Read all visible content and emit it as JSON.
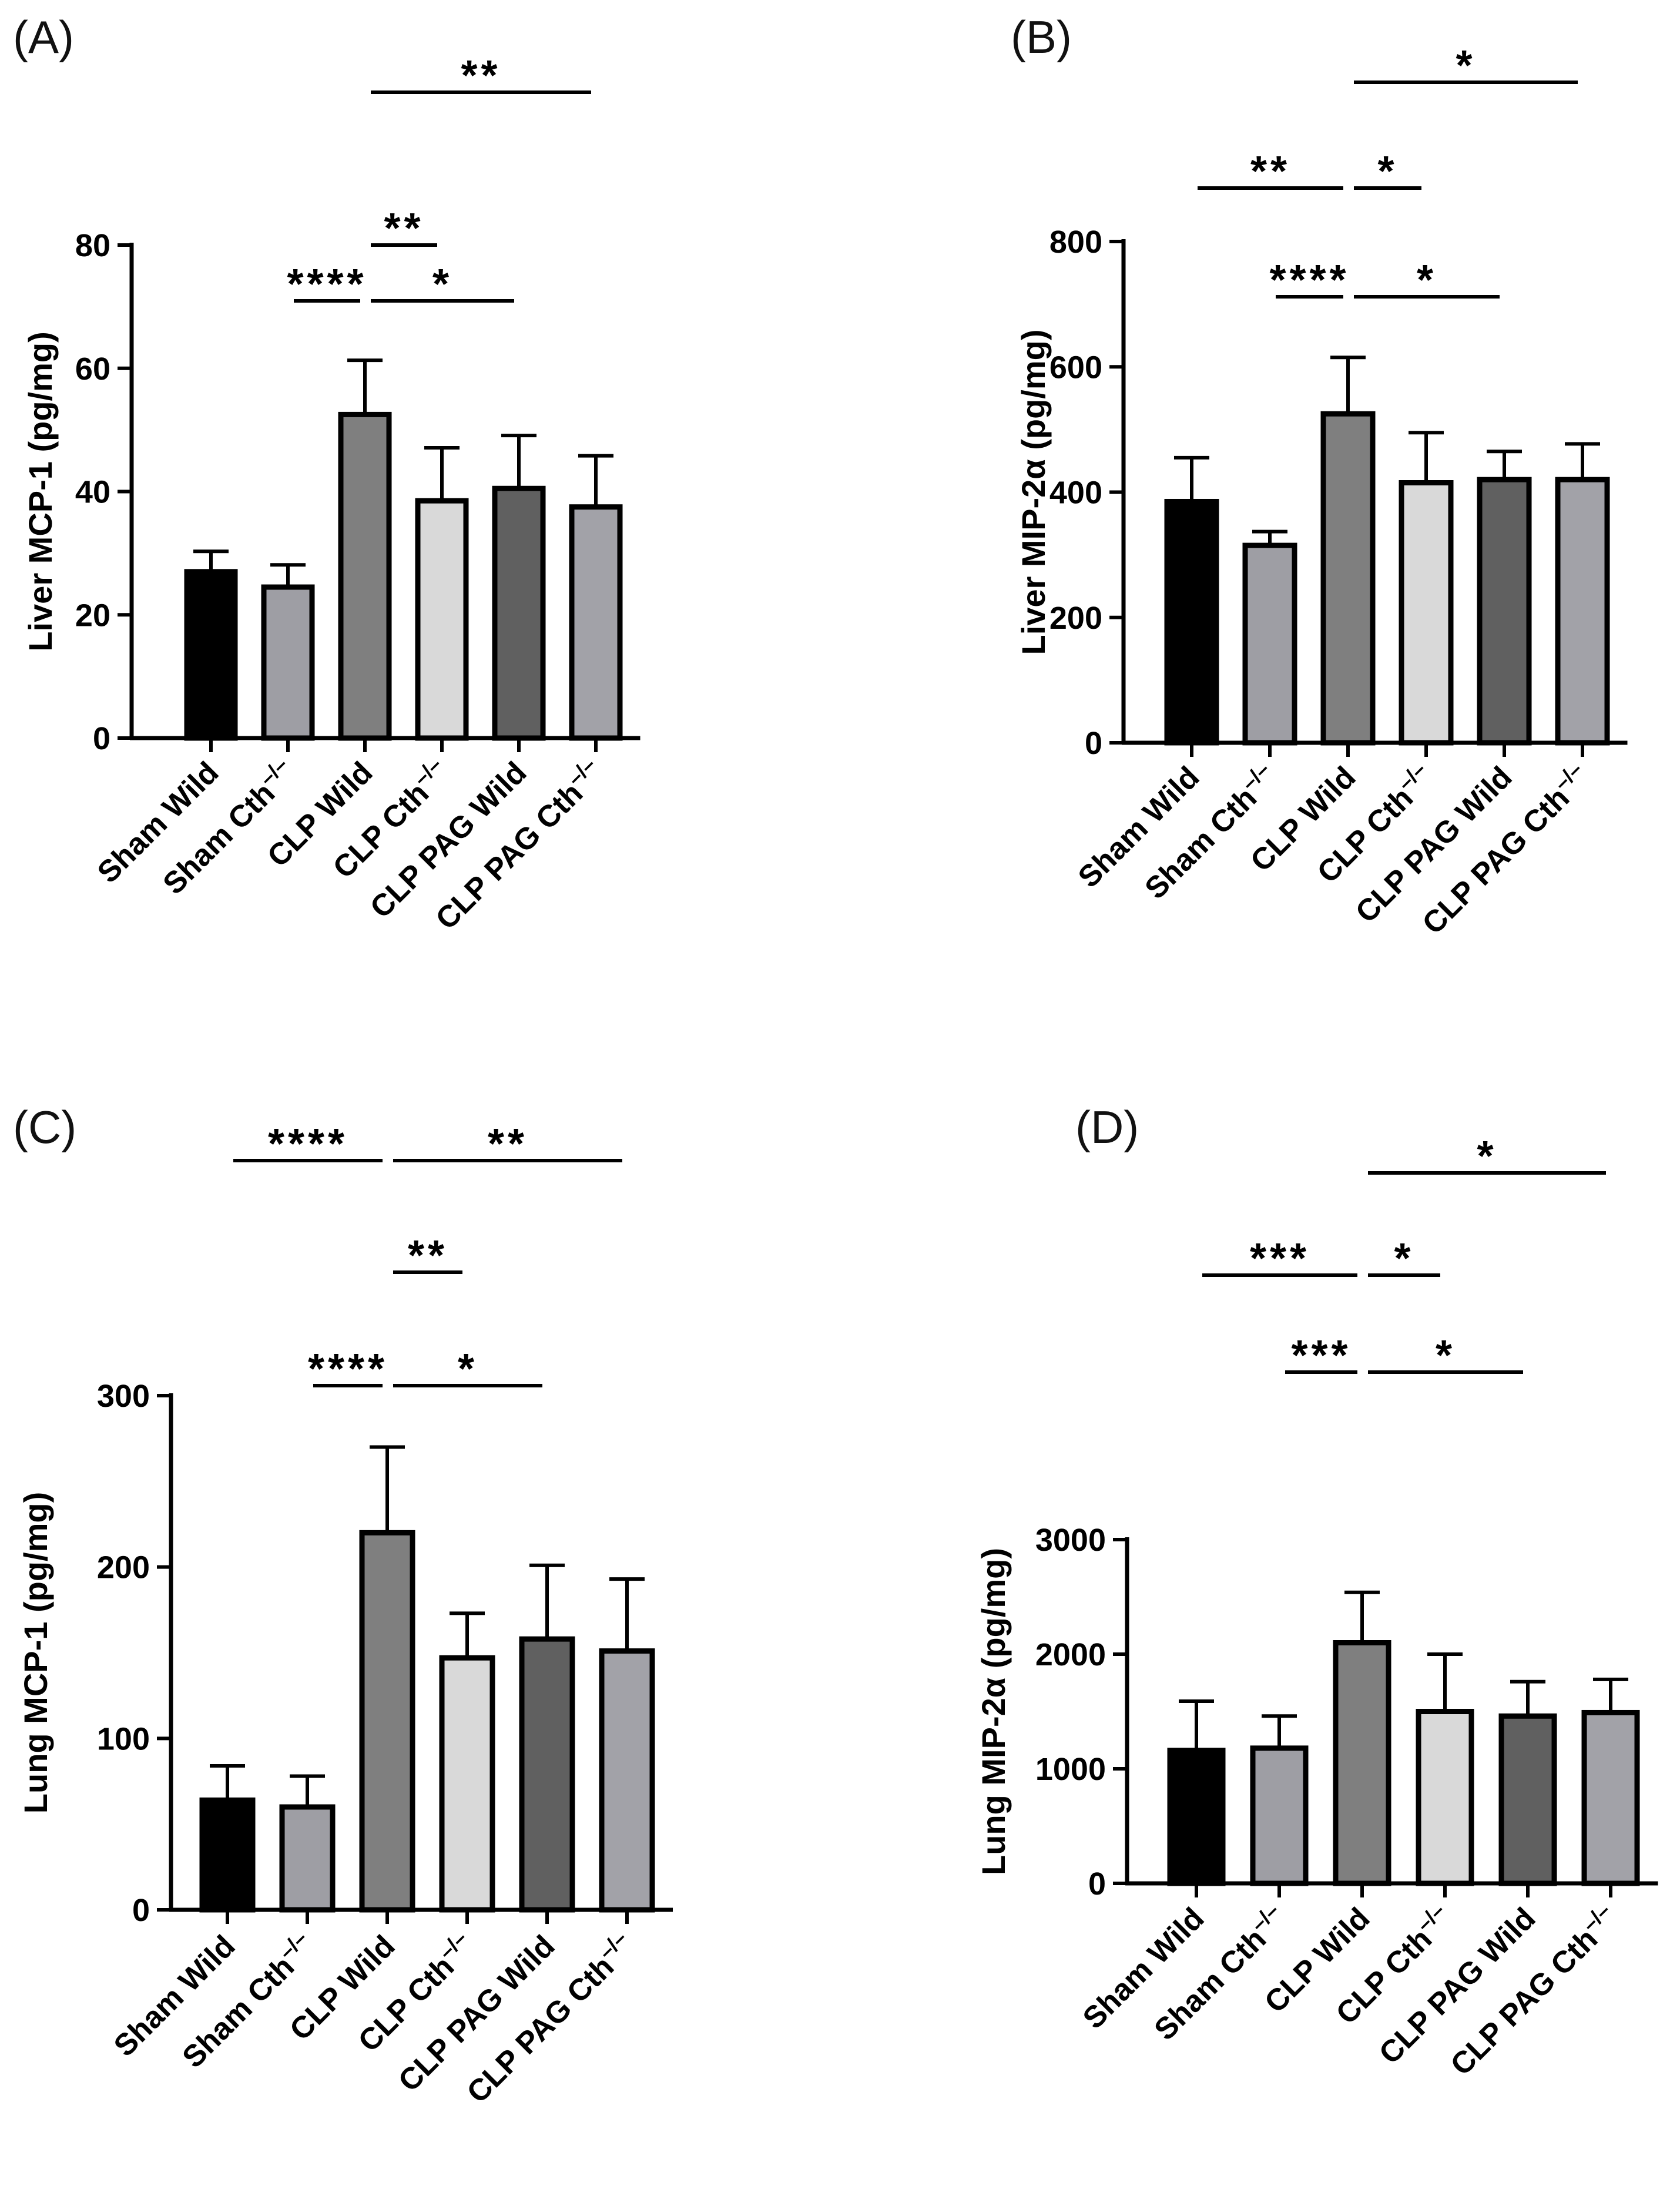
{
  "chart_data": [
    {
      "panel": "(A)",
      "type": "bar",
      "ylabel": "Liver MCP-1 (pg/mg)",
      "ylim": [
        0,
        80
      ],
      "yticks": [
        "0",
        "20",
        "40",
        "60",
        "80"
      ],
      "categories": [
        {
          "base": "Sham Wild",
          "sup": ""
        },
        {
          "base": "Sham Cth",
          "sup": "–/–"
        },
        {
          "base": "CLP Wild",
          "sup": ""
        },
        {
          "base": "CLP Cth",
          "sup": "–/–"
        },
        {
          "base": "CLP PAG Wild",
          "sup": ""
        },
        {
          "base": "CLP PAG Cth",
          "sup": "–/–"
        }
      ],
      "values": [
        27,
        24.5,
        52.5,
        38.5,
        40.5,
        37.5
      ],
      "errors": [
        3.3,
        3.6,
        8.8,
        8.6,
        8.6,
        8.3
      ],
      "colors": [
        "#000000",
        "#9e9ea4",
        "#7f7f7f",
        "#d9d9d9",
        "#606060",
        "#a2a2a8"
      ],
      "significance": [
        {
          "from": 1,
          "to": 2,
          "label": "****"
        },
        {
          "from": 2,
          "to": 4,
          "label": "*"
        },
        {
          "from": 2,
          "to": 3,
          "label": "**"
        },
        {
          "from": 2,
          "to": 5,
          "label": "**"
        }
      ]
    },
    {
      "panel": "(B)",
      "type": "bar",
      "ylabel": "Liver MIP-2α (pg/mg)",
      "ylim": [
        0,
        800
      ],
      "yticks": [
        "0",
        "200",
        "400",
        "600",
        "800"
      ],
      "categories": [
        {
          "base": "Sham Wild",
          "sup": ""
        },
        {
          "base": "Sham Cth",
          "sup": "–/–"
        },
        {
          "base": "CLP Wild",
          "sup": ""
        },
        {
          "base": "CLP Cth",
          "sup": "–/–"
        },
        {
          "base": "CLP PAG Wild",
          "sup": ""
        },
        {
          "base": "CLP PAG Cth",
          "sup": "–/–"
        }
      ],
      "values": [
        385,
        315,
        525,
        415,
        420,
        420
      ],
      "errors": [
        70,
        22,
        90,
        80,
        45,
        57
      ],
      "colors": [
        "#000000",
        "#9e9ea4",
        "#7f7f7f",
        "#d9d9d9",
        "#606060",
        "#a2a2a8"
      ],
      "significance": [
        {
          "from": 1,
          "to": 2,
          "label": "****"
        },
        {
          "from": 2,
          "to": 4,
          "label": "*"
        },
        {
          "from": 0,
          "to": 2,
          "label": "**"
        },
        {
          "from": 2,
          "to": 3,
          "label": "*"
        },
        {
          "from": 2,
          "to": 5,
          "label": "*"
        }
      ]
    },
    {
      "panel": "(C)",
      "type": "bar",
      "ylabel": "Lung MCP-1 (pg/mg)",
      "ylim": [
        0,
        300
      ],
      "yticks": [
        "0",
        "100",
        "200",
        "300"
      ],
      "categories": [
        {
          "base": "Sham Wild",
          "sup": ""
        },
        {
          "base": "Sham Cth",
          "sup": "–/–"
        },
        {
          "base": "CLP Wild",
          "sup": ""
        },
        {
          "base": "CLP Cth",
          "sup": "–/–"
        },
        {
          "base": "CLP PAG Wild",
          "sup": ""
        },
        {
          "base": "CLP PAG Cth",
          "sup": "–/–"
        }
      ],
      "values": [
        64,
        60,
        220,
        147,
        158,
        151
      ],
      "errors": [
        20,
        18,
        50,
        26,
        43,
        42
      ],
      "colors": [
        "#000000",
        "#9e9ea4",
        "#7f7f7f",
        "#d9d9d9",
        "#606060",
        "#a2a2a8"
      ],
      "significance": [
        {
          "from": 1,
          "to": 2,
          "label": "****"
        },
        {
          "from": 2,
          "to": 4,
          "label": "*"
        },
        {
          "from": 2,
          "to": 3,
          "label": "**"
        },
        {
          "from": 0,
          "to": 2,
          "label": "****"
        },
        {
          "from": 2,
          "to": 5,
          "label": "**"
        }
      ]
    },
    {
      "panel": "(D)",
      "type": "bar",
      "ylabel": "Lung MIP-2α (pg/mg)",
      "ylim": [
        0,
        3000
      ],
      "yticks": [
        "0",
        "1000",
        "2000",
        "3000"
      ],
      "categories": [
        {
          "base": "Sham Wild",
          "sup": ""
        },
        {
          "base": "Sham Cth",
          "sup": "–/–"
        },
        {
          "base": "CLP Wild",
          "sup": ""
        },
        {
          "base": "CLP Cth",
          "sup": "–/–"
        },
        {
          "base": "CLP PAG Wild",
          "sup": ""
        },
        {
          "base": "CLP PAG Cth",
          "sup": "–/–"
        }
      ],
      "values": [
        1160,
        1180,
        2100,
        1500,
        1460,
        1490
      ],
      "errors": [
        430,
        280,
        440,
        500,
        300,
        290
      ],
      "colors": [
        "#000000",
        "#9e9ea4",
        "#7f7f7f",
        "#d9d9d9",
        "#606060",
        "#a2a2a8"
      ],
      "significance": [
        {
          "from": 1,
          "to": 2,
          "label": "***"
        },
        {
          "from": 2,
          "to": 4,
          "label": "*"
        },
        {
          "from": 0,
          "to": 2,
          "label": "***"
        },
        {
          "from": 2,
          "to": 3,
          "label": "*"
        },
        {
          "from": 2,
          "to": 5,
          "label": "*"
        }
      ]
    }
  ]
}
